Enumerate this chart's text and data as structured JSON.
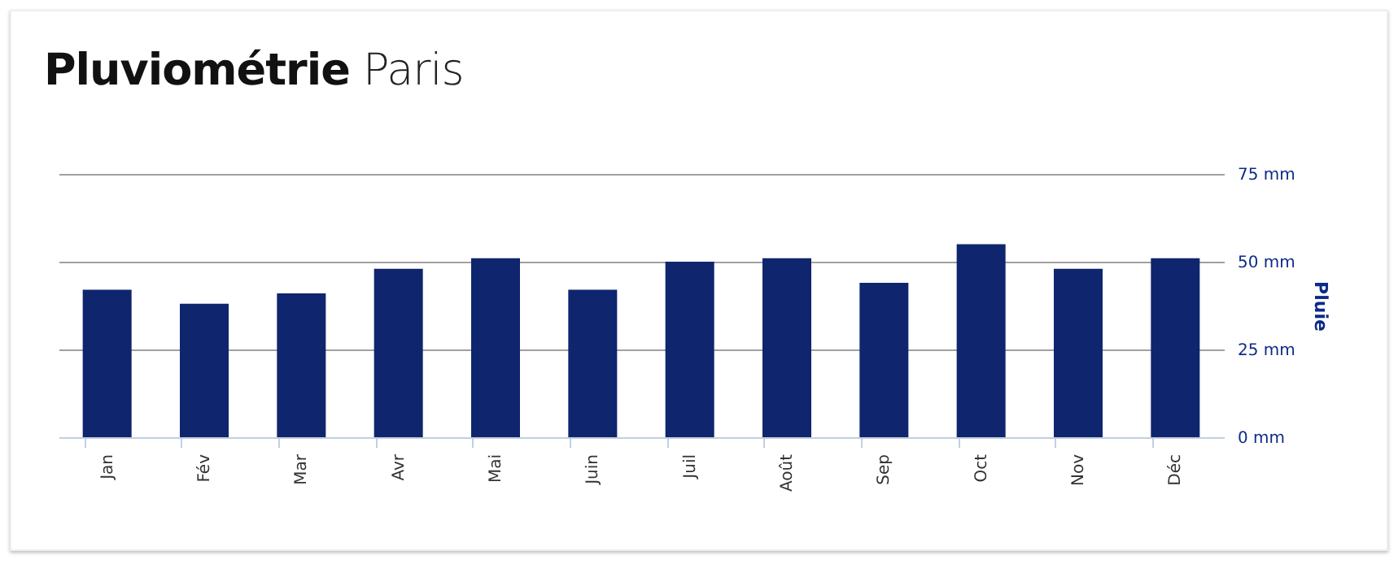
{
  "chart_data": {
    "type": "bar",
    "title": "Pluviométrie",
    "subtitle": "Paris",
    "y2label": "Pluie",
    "categories": [
      "Jan",
      "Fév",
      "Mar",
      "Avr",
      "Mai",
      "Juin",
      "Juil",
      "Août",
      "Sep",
      "Oct",
      "Nov",
      "Déc"
    ],
    "series": [
      {
        "axis": "y2",
        "color": "#0f256e",
        "values": [
          42,
          38,
          41,
          48,
          51,
          42,
          50,
          51,
          44,
          55,
          48,
          51
        ]
      }
    ],
    "y2lim": [
      0,
      75
    ],
    "y2ticks": [
      {
        "value": 0,
        "label": "0 mm"
      },
      {
        "value": 25,
        "label": "25 mm"
      },
      {
        "value": 50,
        "label": "50 mm"
      },
      {
        "value": 75,
        "label": "75 mm"
      }
    ],
    "grid": "y"
  }
}
